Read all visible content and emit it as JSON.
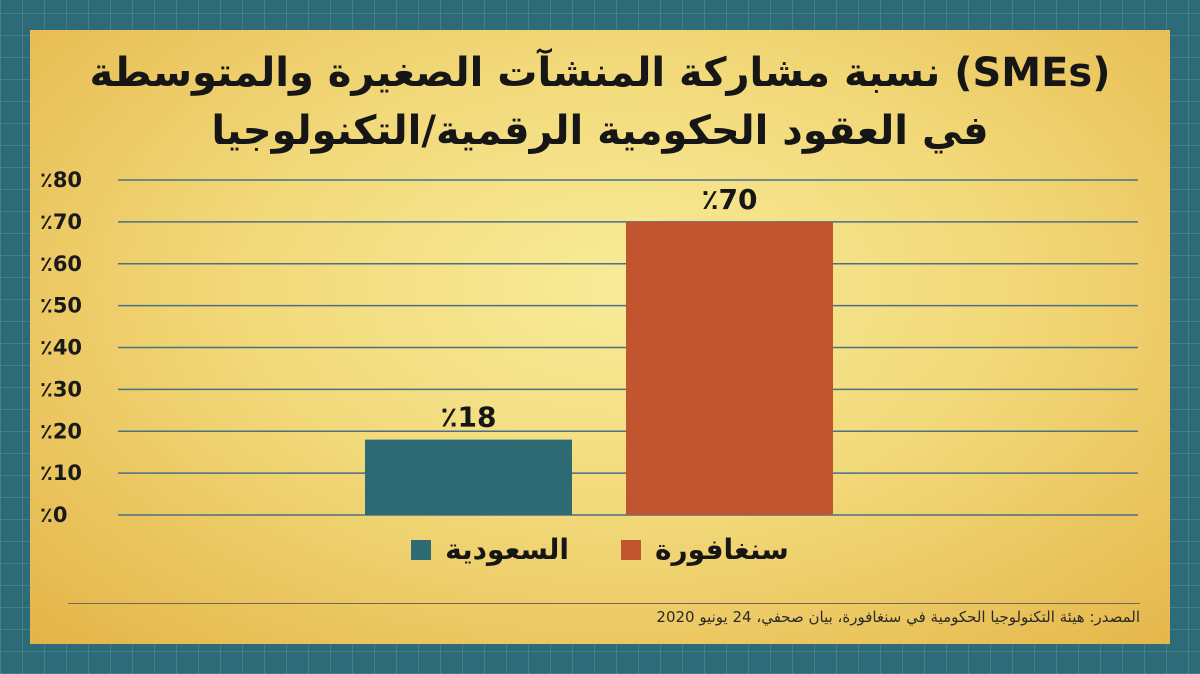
{
  "chart_data": {
    "type": "bar",
    "title_line1": "نسبة مشاركة المنشآت الصغيرة والمتوسطة (SMEs)",
    "title_line2": "في العقود الحكومية الرقمية/التكنولوجيا",
    "categories": [
      "السعودية",
      "سنغافورة"
    ],
    "values": [
      18,
      70
    ],
    "value_labels": [
      "٪18",
      "٪70"
    ],
    "colors": [
      "#2e6a74",
      "#c1552f"
    ],
    "ylim": [
      0,
      80
    ],
    "yticks": [
      0,
      10,
      20,
      30,
      40,
      50,
      60,
      70,
      80
    ],
    "ytick_labels": [
      "٪0",
      "٪10",
      "٪20",
      "٪30",
      "٪40",
      "٪50",
      "٪60",
      "٪70",
      "٪80"
    ],
    "grid": true,
    "legend_position": "bottom"
  },
  "legend": {
    "items": [
      {
        "label": "سنغافورة",
        "color": "#c1552f"
      },
      {
        "label": "السعودية",
        "color": "#2e6a74"
      }
    ]
  },
  "source": "المصدر: هيئة التكنولوجيا الحكومية في سنغافورة، بيان صحفي، 24 يونيو 2020"
}
